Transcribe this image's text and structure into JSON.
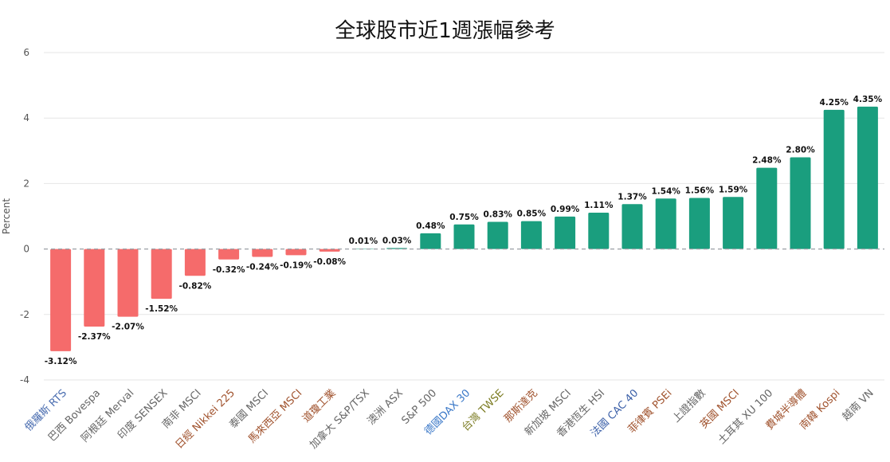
{
  "chart_data": {
    "type": "bar",
    "title": "全球股市近1週漲幅參考",
    "ylabel": "Percent",
    "ylim": [
      -4,
      6
    ],
    "yticks": [
      6,
      4,
      2,
      0,
      -2,
      -4
    ],
    "grid": true,
    "zero_line": "dashed",
    "colors": {
      "positive": "#1a9e7e",
      "negative": "#f56b6b"
    },
    "categories": [
      "俄羅斯 RTS",
      "巴西 Bovespa",
      "阿根廷 Merval",
      "印度 SENSEX",
      "南非 MSCI",
      "日經 Nikkei 225",
      "泰國 MSCI",
      "馬來西亞 MSCI",
      "道瓊工業",
      "加拿大 S&P/TSX",
      "澳洲 ASX",
      "S&P 500",
      "德國DAX 30",
      "台灣 TWSE",
      "那斯達克",
      "新加坡 MSCI",
      "香港恆生 HSI",
      "法國 CAC 40",
      "菲律賓 PSEi",
      "上證指數",
      "英國 MSCI",
      "土耳其 XU 100",
      "費城半導體",
      "南韓 Kospi",
      "越南 VN"
    ],
    "values": [
      -3.12,
      -2.37,
      -2.07,
      -1.52,
      -0.82,
      -0.32,
      -0.24,
      -0.19,
      -0.08,
      0.01,
      0.03,
      0.48,
      0.75,
      0.83,
      0.85,
      0.99,
      1.11,
      1.37,
      1.54,
      1.56,
      1.59,
      2.48,
      2.8,
      4.25,
      4.35
    ],
    "data_labels": [
      "-3.12%",
      "-2.37%",
      "-2.07%",
      "-1.52%",
      "-0.82%",
      "-0.32%",
      "-0.24%",
      "-0.19%",
      "-0.08%",
      "0.01%",
      "0.03%",
      "0.48%",
      "0.75%",
      "0.83%",
      "0.85%",
      "0.99%",
      "1.11%",
      "1.37%",
      "1.54%",
      "1.56%",
      "1.59%",
      "2.48%",
      "2.80%",
      "4.25%",
      "4.35%"
    ],
    "label_colors": [
      "#4a6db0",
      "#666666",
      "#666666",
      "#666666",
      "#666666",
      "#a0522d",
      "#666666",
      "#a0522d",
      "#a0522d",
      "#666666",
      "#666666",
      "#666666",
      "#3a78c8",
      "#7a7a20",
      "#a0522d",
      "#666666",
      "#666666",
      "#3a5fa8",
      "#a0522d",
      "#666666",
      "#a0522d",
      "#666666",
      "#a0522d",
      "#a0522d",
      "#666666"
    ],
    "label_sizes": [
      "normal",
      "normal",
      "normal",
      "normal",
      "normal",
      "normal",
      "normal",
      "small",
      "normal",
      "normal",
      "normal",
      "normal",
      "small",
      "normal",
      "normal",
      "normal",
      "normal",
      "large",
      "normal",
      "normal",
      "small",
      "normal",
      "normal",
      "normal",
      "normal"
    ]
  }
}
